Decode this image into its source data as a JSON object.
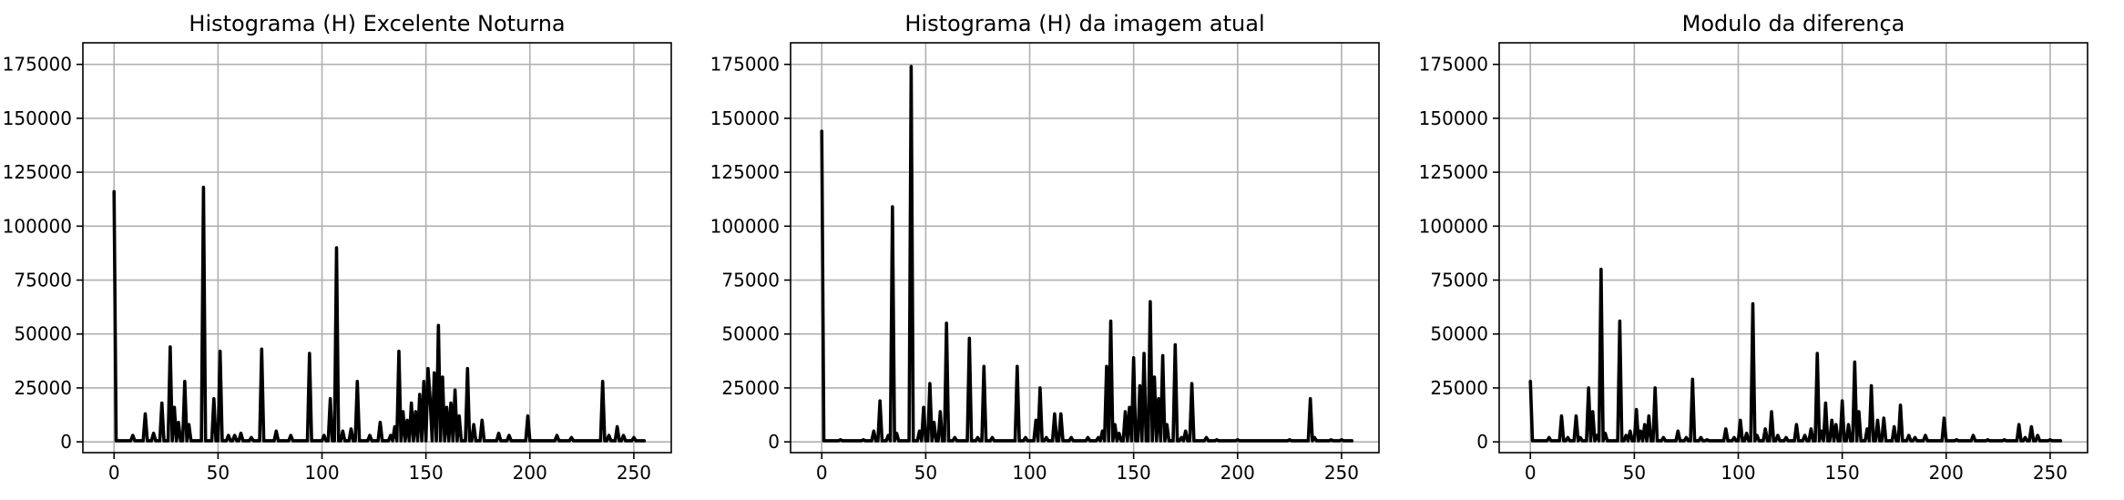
{
  "chart_data": [
    {
      "type": "line",
      "title": "Histograma (H) Excelente Noturna",
      "xlabel": "",
      "ylabel": "",
      "xlim": [
        -15,
        268
      ],
      "ylim": [
        -5000,
        185000
      ],
      "xticks": [
        0,
        50,
        100,
        150,
        200,
        250
      ],
      "yticks": [
        0,
        25000,
        50000,
        75000,
        100000,
        125000,
        150000,
        175000
      ],
      "grid": true,
      "line_color": "#000000",
      "x_range": [
        0,
        255
      ],
      "points": [
        [
          0,
          116000
        ],
        [
          9,
          3000
        ],
        [
          15,
          13000
        ],
        [
          19,
          4000
        ],
        [
          23,
          18000
        ],
        [
          27,
          44000
        ],
        [
          29,
          16000
        ],
        [
          31,
          9000
        ],
        [
          34,
          28000
        ],
        [
          36,
          8000
        ],
        [
          43,
          118000
        ],
        [
          48,
          20000
        ],
        [
          51,
          42000
        ],
        [
          55,
          3000
        ],
        [
          58,
          3000
        ],
        [
          61,
          4000
        ],
        [
          66,
          2000
        ],
        [
          71,
          43000
        ],
        [
          78,
          5000
        ],
        [
          85,
          3000
        ],
        [
          94,
          41000
        ],
        [
          101,
          3000
        ],
        [
          104,
          20000
        ],
        [
          107,
          90000
        ],
        [
          110,
          5000
        ],
        [
          114,
          6000
        ],
        [
          117,
          28000
        ],
        [
          123,
          3000
        ],
        [
          128,
          9000
        ],
        [
          133,
          3000
        ],
        [
          135,
          7000
        ],
        [
          137,
          42000
        ],
        [
          139,
          14000
        ],
        [
          141,
          10000
        ],
        [
          143,
          18000
        ],
        [
          145,
          14000
        ],
        [
          147,
          22000
        ],
        [
          149,
          28000
        ],
        [
          151,
          34000
        ],
        [
          152,
          20000
        ],
        [
          154,
          32000
        ],
        [
          156,
          54000
        ],
        [
          158,
          30000
        ],
        [
          160,
          16000
        ],
        [
          162,
          18000
        ],
        [
          164,
          24000
        ],
        [
          166,
          12000
        ],
        [
          170,
          34000
        ],
        [
          173,
          8000
        ],
        [
          177,
          10000
        ],
        [
          185,
          4000
        ],
        [
          190,
          3000
        ],
        [
          199,
          12000
        ],
        [
          213,
          3000
        ],
        [
          220,
          2000
        ],
        [
          235,
          28000
        ],
        [
          238,
          3000
        ],
        [
          242,
          7000
        ],
        [
          245,
          3000
        ],
        [
          250,
          2000
        ]
      ]
    },
    {
      "type": "line",
      "title": "Histograma (H) da imagem atual",
      "xlabel": "",
      "ylabel": "",
      "xlim": [
        -15,
        268
      ],
      "ylim": [
        -5000,
        185000
      ],
      "xticks": [
        0,
        50,
        100,
        150,
        200,
        250
      ],
      "yticks": [
        0,
        25000,
        50000,
        75000,
        100000,
        125000,
        150000,
        175000
      ],
      "grid": true,
      "line_color": "#000000",
      "x_range": [
        0,
        255
      ],
      "points": [
        [
          0,
          144000
        ],
        [
          9,
          1000
        ],
        [
          20,
          1000
        ],
        [
          25,
          5000
        ],
        [
          28,
          19000
        ],
        [
          32,
          3000
        ],
        [
          34,
          109000
        ],
        [
          36,
          4000
        ],
        [
          43,
          174000
        ],
        [
          47,
          5000
        ],
        [
          49,
          16000
        ],
        [
          52,
          27000
        ],
        [
          54,
          9000
        ],
        [
          57,
          14000
        ],
        [
          60,
          55000
        ],
        [
          64,
          2000
        ],
        [
          71,
          48000
        ],
        [
          75,
          2000
        ],
        [
          78,
          35000
        ],
        [
          82,
          2000
        ],
        [
          94,
          35000
        ],
        [
          98,
          2000
        ],
        [
          103,
          10000
        ],
        [
          105,
          25000
        ],
        [
          108,
          2000
        ],
        [
          112,
          13000
        ],
        [
          115,
          13000
        ],
        [
          120,
          2000
        ],
        [
          128,
          2000
        ],
        [
          133,
          2000
        ],
        [
          135,
          5000
        ],
        [
          137,
          35000
        ],
        [
          139,
          56000
        ],
        [
          141,
          8000
        ],
        [
          143,
          4000
        ],
        [
          146,
          14000
        ],
        [
          148,
          16000
        ],
        [
          150,
          39000
        ],
        [
          153,
          26000
        ],
        [
          155,
          41000
        ],
        [
          158,
          65000
        ],
        [
          160,
          30000
        ],
        [
          162,
          20000
        ],
        [
          164,
          40000
        ],
        [
          166,
          8000
        ],
        [
          170,
          45000
        ],
        [
          173,
          2000
        ],
        [
          175,
          5000
        ],
        [
          178,
          27000
        ],
        [
          185,
          2000
        ],
        [
          190,
          1000
        ],
        [
          200,
          1000
        ],
        [
          225,
          1000
        ],
        [
          235,
          20000
        ],
        [
          237,
          2000
        ],
        [
          245,
          1000
        ],
        [
          250,
          1000
        ]
      ]
    },
    {
      "type": "line",
      "title": "Modulo da diferença",
      "xlabel": "",
      "ylabel": "",
      "xlim": [
        -15,
        268
      ],
      "ylim": [
        -5000,
        185000
      ],
      "xticks": [
        0,
        50,
        100,
        150,
        200,
        250
      ],
      "yticks": [
        0,
        25000,
        50000,
        75000,
        100000,
        125000,
        150000,
        175000
      ],
      "grid": true,
      "line_color": "#000000",
      "x_range": [
        0,
        255
      ],
      "points": [
        [
          0,
          28000
        ],
        [
          9,
          2000
        ],
        [
          15,
          12000
        ],
        [
          18,
          2000
        ],
        [
          22,
          12000
        ],
        [
          24,
          2000
        ],
        [
          28,
          25000
        ],
        [
          30,
          14000
        ],
        [
          32,
          3000
        ],
        [
          34,
          80000
        ],
        [
          36,
          4000
        ],
        [
          43,
          56000
        ],
        [
          46,
          3000
        ],
        [
          48,
          5000
        ],
        [
          51,
          15000
        ],
        [
          53,
          5000
        ],
        [
          55,
          8000
        ],
        [
          57,
          12000
        ],
        [
          60,
          25000
        ],
        [
          64,
          2000
        ],
        [
          71,
          5000
        ],
        [
          75,
          2000
        ],
        [
          78,
          29000
        ],
        [
          82,
          2000
        ],
        [
          85,
          1000
        ],
        [
          94,
          6000
        ],
        [
          98,
          2000
        ],
        [
          101,
          10000
        ],
        [
          104,
          4000
        ],
        [
          107,
          64000
        ],
        [
          109,
          3000
        ],
        [
          113,
          6000
        ],
        [
          116,
          14000
        ],
        [
          119,
          3000
        ],
        [
          123,
          2000
        ],
        [
          128,
          8000
        ],
        [
          132,
          3000
        ],
        [
          135,
          6000
        ],
        [
          138,
          41000
        ],
        [
          140,
          5000
        ],
        [
          142,
          18000
        ],
        [
          145,
          10000
        ],
        [
          147,
          8000
        ],
        [
          150,
          19000
        ],
        [
          153,
          8000
        ],
        [
          156,
          37000
        ],
        [
          158,
          14000
        ],
        [
          162,
          6000
        ],
        [
          164,
          26000
        ],
        [
          167,
          10000
        ],
        [
          170,
          11000
        ],
        [
          175,
          7000
        ],
        [
          178,
          17000
        ],
        [
          182,
          3000
        ],
        [
          185,
          2000
        ],
        [
          190,
          3000
        ],
        [
          199,
          11000
        ],
        [
          205,
          1000
        ],
        [
          213,
          3000
        ],
        [
          220,
          1000
        ],
        [
          228,
          1000
        ],
        [
          235,
          8000
        ],
        [
          238,
          2000
        ],
        [
          241,
          7000
        ],
        [
          244,
          3000
        ],
        [
          250,
          1000
        ]
      ]
    }
  ]
}
